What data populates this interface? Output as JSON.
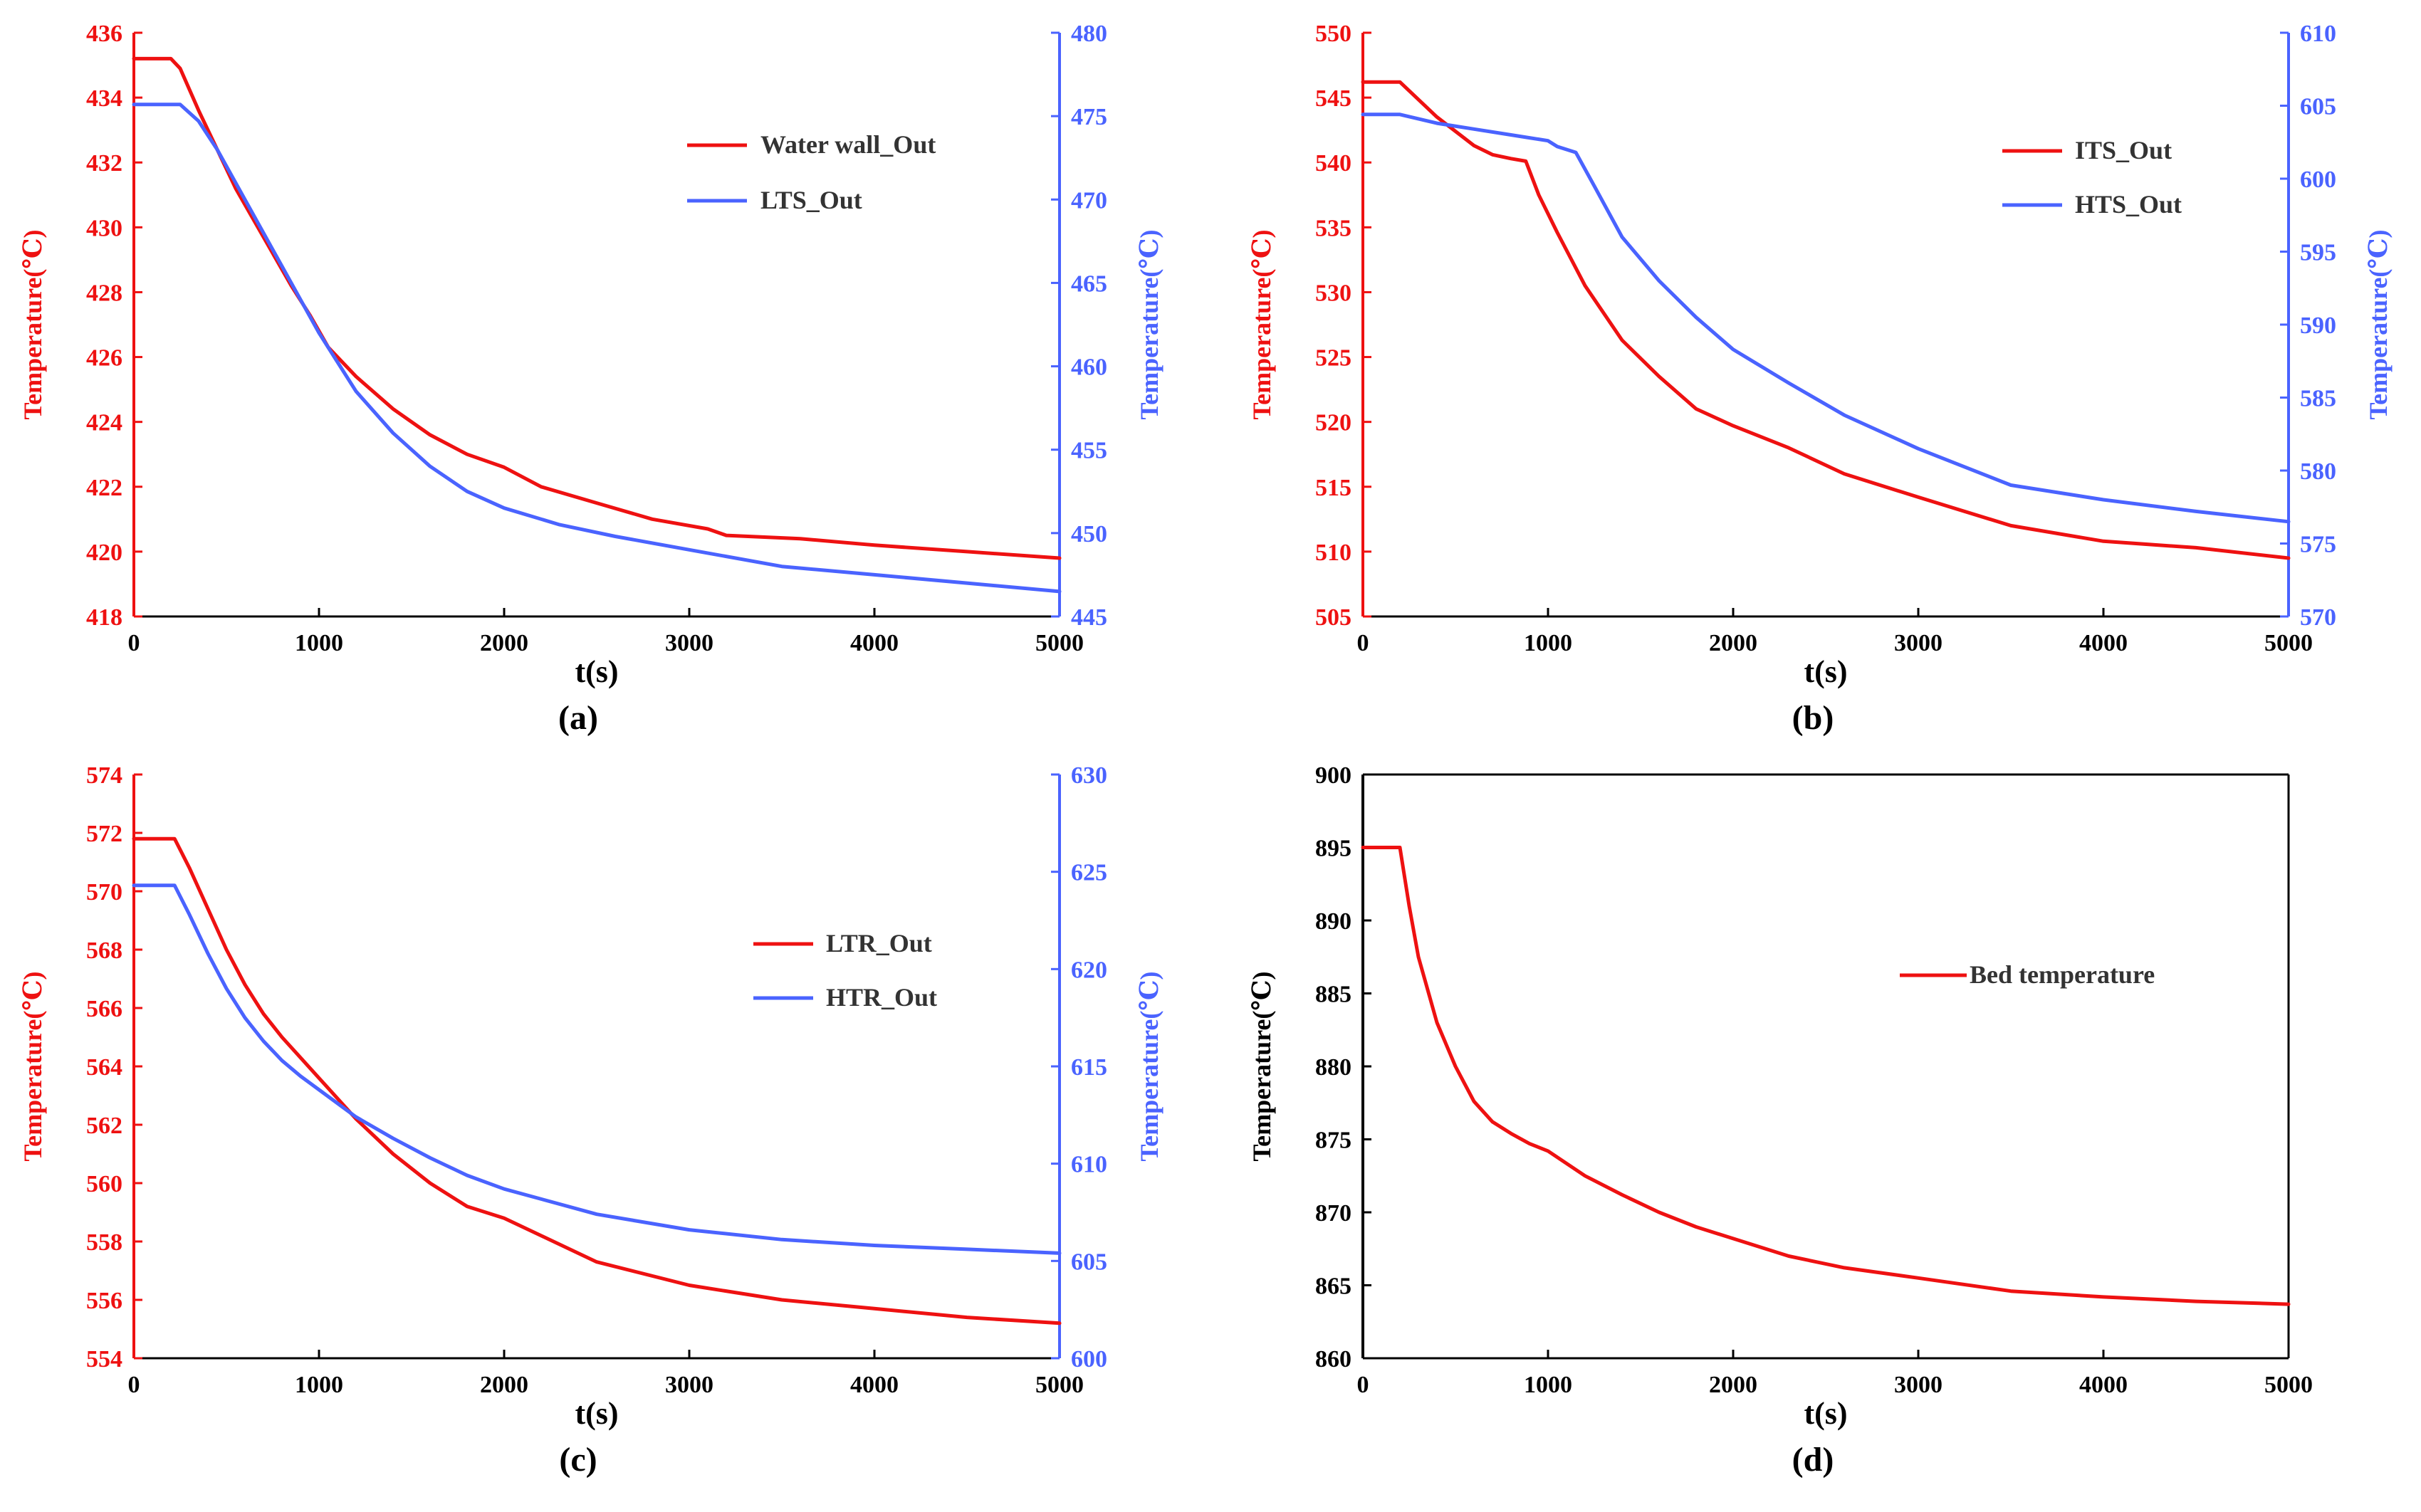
{
  "colors": {
    "red": "#ee1111",
    "blue": "#4a63ff",
    "black": "#000000"
  },
  "chart_data": [
    {
      "id": "a",
      "type": "line",
      "caption": "(a)",
      "xlabel": "t(s)",
      "xlim": [
        0,
        5000
      ],
      "xticks": [
        0,
        1000,
        2000,
        3000,
        4000,
        5000
      ],
      "left_axis": {
        "label": "Temperature(℃)",
        "lim": [
          418,
          436
        ],
        "ticks": [
          418,
          420,
          422,
          424,
          426,
          428,
          430,
          432,
          434,
          436
        ],
        "color": "red"
      },
      "right_axis": {
        "label": "Temperature(℃)",
        "lim": [
          445,
          480
        ],
        "ticks": [
          445,
          450,
          455,
          460,
          465,
          470,
          475,
          480
        ],
        "color": "blue"
      },
      "legend_position": "top-right",
      "series": [
        {
          "name": "Water wall_Out",
          "color": "red",
          "axis": "left",
          "x": [
            0,
            200,
            250,
            350,
            450,
            550,
            650,
            750,
            850,
            950,
            1050,
            1200,
            1400,
            1600,
            1800,
            2000,
            2200,
            2500,
            2800,
            3100,
            3200,
            3600,
            4000,
            4500,
            5000
          ],
          "y": [
            435.2,
            435.2,
            434.9,
            433.6,
            432.4,
            431.2,
            430.2,
            429.2,
            428.2,
            427.3,
            426.3,
            425.4,
            424.4,
            423.6,
            423.0,
            422.6,
            422.0,
            421.5,
            421.0,
            420.7,
            420.5,
            420.4,
            420.2,
            420.0,
            419.8
          ]
        },
        {
          "name": "LTS_Out",
          "color": "blue",
          "axis": "left_r",
          "x": [
            0,
            250,
            350,
            450,
            600,
            800,
            1000,
            1200,
            1400,
            1600,
            1800,
            2000,
            2300,
            2600,
            3000,
            3500,
            4000,
            4500,
            5000
          ],
          "y": [
            475.7,
            475.7,
            474.7,
            473.0,
            470.0,
            466.0,
            462.0,
            458.5,
            456.0,
            454.0,
            452.5,
            451.5,
            450.5,
            449.8,
            449.0,
            448.0,
            447.5,
            447.0,
            446.5
          ]
        }
      ]
    },
    {
      "id": "b",
      "type": "line",
      "caption": "(b)",
      "xlabel": "t(s)",
      "xlim": [
        0,
        5000
      ],
      "xticks": [
        0,
        1000,
        2000,
        3000,
        4000,
        5000
      ],
      "left_axis": {
        "label": "Temperature(℃)",
        "lim": [
          505,
          550
        ],
        "ticks": [
          505,
          510,
          515,
          520,
          525,
          530,
          535,
          540,
          545,
          550
        ],
        "color": "red"
      },
      "right_axis": {
        "label": "Temperature(℃)",
        "lim": [
          570,
          610
        ],
        "ticks": [
          570,
          575,
          580,
          585,
          590,
          595,
          600,
          605,
          610
        ],
        "color": "blue"
      },
      "legend_position": "top-right",
      "series": [
        {
          "name": "ITS_Out",
          "color": "red",
          "axis": "left",
          "x": [
            0,
            200,
            400,
            600,
            700,
            800,
            880,
            950,
            1050,
            1200,
            1400,
            1600,
            1800,
            2000,
            2300,
            2600,
            3000,
            3500,
            4000,
            4500,
            5000
          ],
          "y": [
            546.2,
            546.2,
            543.5,
            541.3,
            540.6,
            540.3,
            540.1,
            537.5,
            534.6,
            530.5,
            526.3,
            523.5,
            521.0,
            519.7,
            518.0,
            516.0,
            514.2,
            512.0,
            510.8,
            510.3,
            509.5
          ]
        },
        {
          "name": "HTS_Out",
          "color": "blue",
          "axis": "right",
          "x": [
            0,
            200,
            400,
            600,
            800,
            900,
            1000,
            1050,
            1100,
            1150,
            1250,
            1400,
            1600,
            1800,
            2000,
            2300,
            2600,
            3000,
            3500,
            4000,
            4500,
            5000
          ],
          "y": [
            604.4,
            604.4,
            603.8,
            603.4,
            603.0,
            602.8,
            602.6,
            602.2,
            602.0,
            601.8,
            599.5,
            596.0,
            593.0,
            590.5,
            588.3,
            586.0,
            583.8,
            581.5,
            579.0,
            578.0,
            577.2,
            576.5
          ]
        }
      ]
    },
    {
      "id": "c",
      "type": "line",
      "caption": "(c)",
      "xlabel": "t(s)",
      "xlim": [
        0,
        5000
      ],
      "xticks": [
        0,
        1000,
        2000,
        3000,
        4000,
        5000
      ],
      "left_axis": {
        "label": "Temperature(℃)",
        "lim": [
          554,
          574
        ],
        "ticks": [
          554,
          556,
          558,
          560,
          562,
          564,
          566,
          568,
          570,
          572,
          574
        ],
        "color": "red"
      },
      "right_axis": {
        "label": "Temperature(℃)",
        "lim": [
          600,
          630
        ],
        "ticks": [
          600,
          605,
          610,
          615,
          620,
          625,
          630
        ],
        "color": "blue"
      },
      "legend_position": "right",
      "series": [
        {
          "name": "LTR_Out",
          "color": "red",
          "axis": "left",
          "x": [
            0,
            220,
            300,
            400,
            500,
            600,
            700,
            800,
            900,
            1000,
            1200,
            1400,
            1600,
            1800,
            2000,
            2500,
            3000,
            3500,
            4000,
            4500,
            5000
          ],
          "y": [
            571.8,
            571.8,
            570.8,
            569.4,
            568.0,
            566.8,
            565.8,
            565.0,
            564.3,
            563.6,
            562.2,
            561.0,
            560.0,
            559.2,
            558.8,
            557.3,
            556.5,
            556.0,
            555.7,
            555.4,
            555.2
          ]
        },
        {
          "name": "HTR_Out",
          "color": "blue",
          "axis": "right",
          "x": [
            0,
            220,
            300,
            400,
            500,
            600,
            700,
            800,
            900,
            1000,
            1200,
            1400,
            1600,
            1800,
            2000,
            2500,
            3000,
            3500,
            4000,
            4500,
            5000
          ],
          "y": [
            624.3,
            624.3,
            622.8,
            620.8,
            619.0,
            617.5,
            616.3,
            615.3,
            614.5,
            613.8,
            612.4,
            611.3,
            610.3,
            609.4,
            608.7,
            607.4,
            606.6,
            606.1,
            605.8,
            605.6,
            605.4
          ]
        }
      ]
    },
    {
      "id": "d",
      "type": "line",
      "caption": "(d)",
      "xlabel": "t(s)",
      "xlim": [
        0,
        5000
      ],
      "xticks": [
        0,
        1000,
        2000,
        3000,
        4000,
        5000
      ],
      "left_axis": {
        "label": "Temperature(℃)",
        "lim": [
          860,
          900
        ],
        "ticks": [
          860,
          865,
          870,
          875,
          880,
          885,
          890,
          895,
          900
        ],
        "color": "black"
      },
      "legend_position": "right",
      "series": [
        {
          "name": "Bed temperature",
          "color": "red",
          "axis": "left",
          "x": [
            0,
            200,
            250,
            300,
            400,
            500,
            600,
            700,
            800,
            900,
            1000,
            1200,
            1400,
            1600,
            1800,
            2000,
            2300,
            2600,
            3000,
            3500,
            4000,
            4500,
            5000
          ],
          "y": [
            895,
            895,
            891,
            887.5,
            883,
            880,
            877.6,
            876.2,
            875.4,
            874.7,
            874.2,
            872.5,
            871.2,
            870.0,
            869.0,
            868.2,
            867.0,
            866.2,
            865.5,
            864.6,
            864.2,
            863.9,
            863.7
          ]
        }
      ]
    }
  ]
}
